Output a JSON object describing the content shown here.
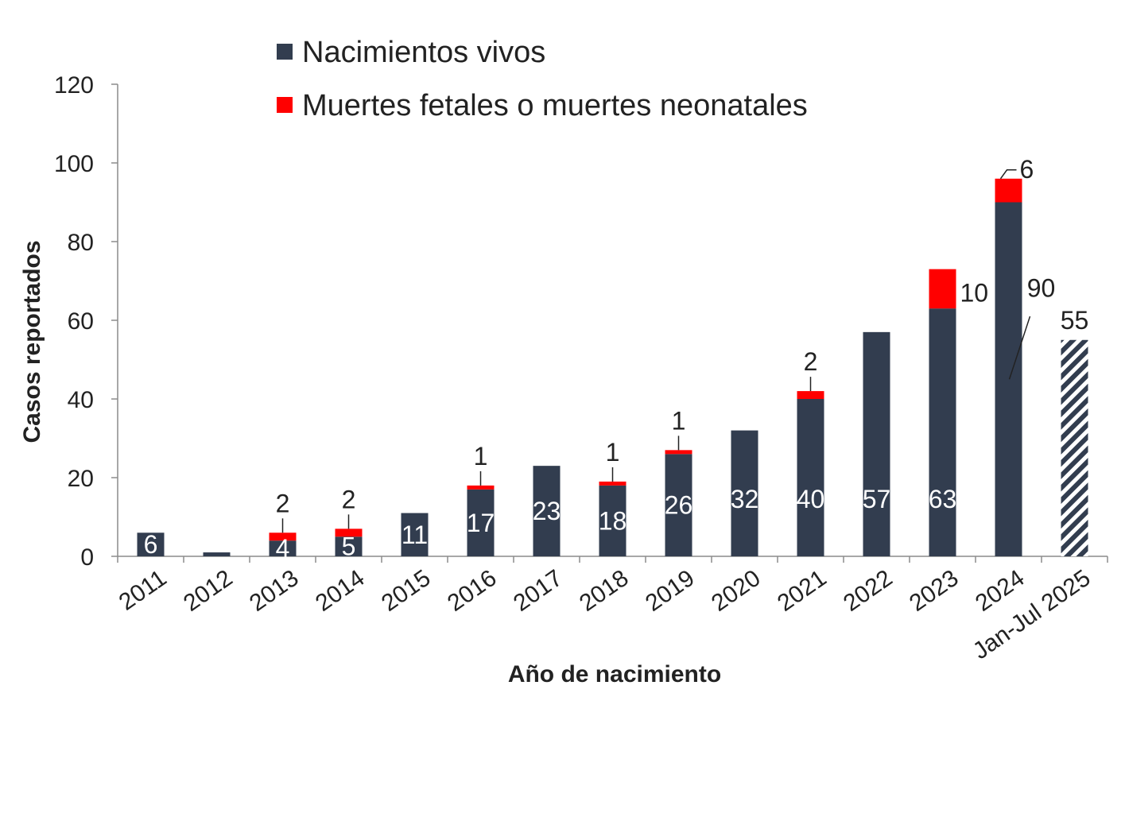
{
  "chart_data": {
    "type": "bar",
    "stacked": true,
    "categories": [
      "2011",
      "2012",
      "2013",
      "2014",
      "2015",
      "2016",
      "2017",
      "2018",
      "2019",
      "2020",
      "2021",
      "2022",
      "2023",
      "2024",
      "Jan-Jul 2025"
    ],
    "series": [
      {
        "name": "Nacimientos vivos",
        "color": "#323d4f",
        "values": [
          6,
          1,
          4,
          5,
          11,
          17,
          23,
          18,
          26,
          32,
          40,
          57,
          63,
          90,
          55
        ],
        "labels": [
          "6",
          "",
          "4",
          "5",
          "11",
          "17",
          "23",
          "18",
          "26",
          "32",
          "40",
          "57",
          "63",
          "90",
          "55"
        ]
      },
      {
        "name": "Muertes fetales o muertes neonatales",
        "color": "#ff0000",
        "values": [
          0,
          0,
          2,
          2,
          0,
          1,
          0,
          1,
          1,
          0,
          2,
          0,
          10,
          6,
          0
        ],
        "labels": [
          "",
          "",
          "2",
          "2",
          "",
          "1",
          "",
          "1",
          "1",
          "",
          "2",
          "",
          "10",
          "6",
          ""
        ]
      }
    ],
    "hatched_categories": [
      "Jan-Jul 2025"
    ],
    "xlabel": "Año de nacimiento",
    "ylabel": "Casos reportados",
    "ylim": [
      0,
      120
    ],
    "yticks": [
      0,
      20,
      40,
      60,
      80,
      100,
      120
    ],
    "grid": false,
    "legend_position": "top"
  }
}
